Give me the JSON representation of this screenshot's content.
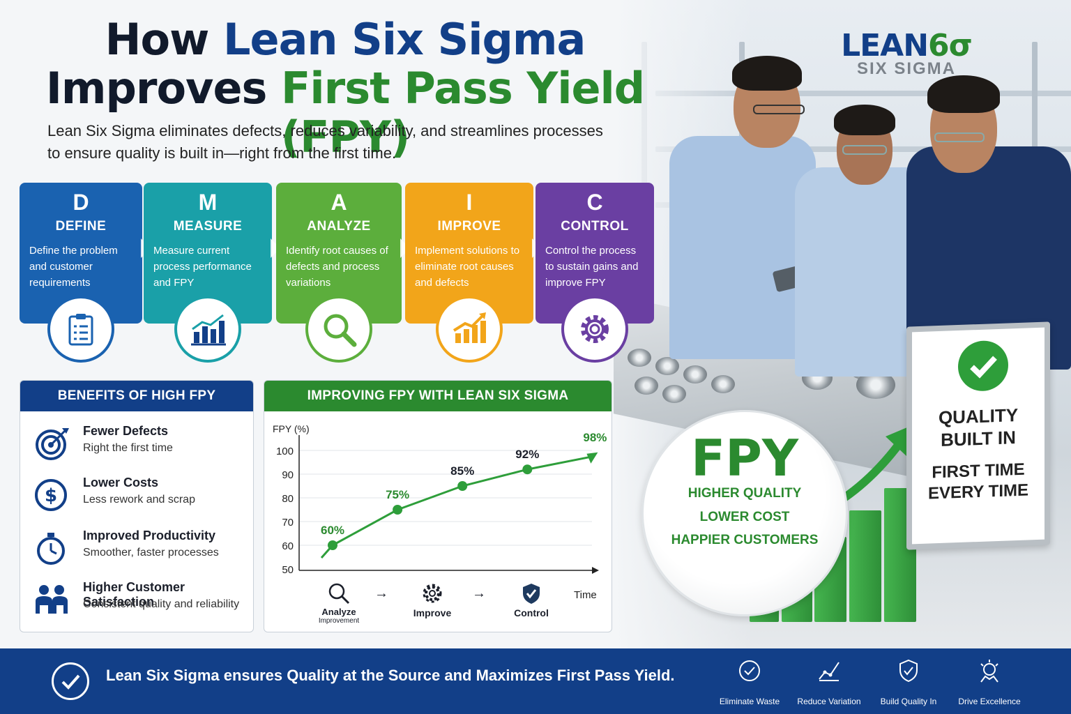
{
  "title": {
    "w1": "How",
    "w2": "Lean Six Sigma",
    "w3": "Improves",
    "w4": "First Pass Yield (FPY)"
  },
  "subtitle": {
    "line1": "Lean Six Sigma eliminates defects, reduces variability, and streamlines processes",
    "line2": "to ensure quality is built in—right from the first time."
  },
  "logo": {
    "main": "LEAN",
    "six": "6σ",
    "sub": "SIX SIGMA"
  },
  "dmaic": [
    {
      "letter": "D",
      "name": "DEFINE",
      "desc": "Define the problem and customer requirements",
      "color": "#1a62b0",
      "icon": "clipboard-icon"
    },
    {
      "letter": "M",
      "name": "MEASURE",
      "desc": "Measure current process performance and FPY",
      "color": "#1aa0a8",
      "icon": "bar-chart-icon"
    },
    {
      "letter": "A",
      "name": "ANALYZE",
      "desc": "Identify root causes of defects and process variations",
      "color": "#5cae3c",
      "icon": "magnifier-icon"
    },
    {
      "letter": "I",
      "name": "IMPROVE",
      "desc": "Implement solutions to eliminate root causes and defects",
      "color": "#f2a51a",
      "icon": "growth-chart-icon"
    },
    {
      "letter": "C",
      "name": "CONTROL",
      "desc": "Control the process to sustain gains and improve FPY",
      "color": "#6a3fa2",
      "icon": "gear-icon"
    }
  ],
  "benefits": {
    "header": "BENEFITS OF HIGH FPY",
    "items": [
      {
        "title": "Fewer Defects",
        "sub": "Right the first time",
        "icon": "target-icon"
      },
      {
        "title": "Lower Costs",
        "sub": "Less rework and scrap",
        "icon": "dollar-icon"
      },
      {
        "title": "Improved Productivity",
        "sub": "Smoother, faster processes",
        "icon": "stopwatch-icon"
      },
      {
        "title": "Higher Customer Satisfaction",
        "sub": "Consistent quality and reliability",
        "icon": "people-icon"
      }
    ]
  },
  "chart_panel": {
    "header": "IMPROVING FPY WITH LEAN SIX SIGMA",
    "phases": [
      {
        "label": "Analyze",
        "sub": "Improvement",
        "icon": "magnifier-icon"
      },
      {
        "label": "Improve",
        "sub": "",
        "icon": "gear-icon"
      },
      {
        "label": "Control",
        "sub": "",
        "icon": "shield-check-icon"
      }
    ],
    "arrow": "→"
  },
  "chart_data": {
    "type": "line",
    "ylabel": "FPY (%)",
    "xlabel": "Time",
    "ylim": [
      50,
      100
    ],
    "yticks": [
      100,
      90,
      80,
      70,
      60,
      50
    ],
    "grid": true,
    "series": [
      {
        "values": [
          60,
          75,
          85,
          92,
          98
        ],
        "labels": [
          "60%",
          "75%",
          "85%",
          "92%",
          "98%"
        ],
        "color": "#2e9e3a"
      }
    ]
  },
  "fpy_badge": {
    "big": "FPY",
    "l1": "HIGHER QUALITY",
    "l2": "LOWER COST",
    "l3": "HAPPIER CUSTOMERS"
  },
  "sign": {
    "l1a": "QUALITY",
    "l1b": "BUILT IN",
    "l2a": "FIRST TIME",
    "l2b": "EVERY TIME"
  },
  "footer": {
    "text": "Lean Six Sigma ensures Quality at the Source and Maximizes First Pass Yield.",
    "items": [
      {
        "label": "Eliminate Waste",
        "icon": "waste-icon"
      },
      {
        "label": "Reduce Variation",
        "icon": "variation-icon"
      },
      {
        "label": "Build Quality In",
        "icon": "quality-shield-icon"
      },
      {
        "label": "Drive Excellence",
        "icon": "excellence-icon"
      }
    ]
  }
}
